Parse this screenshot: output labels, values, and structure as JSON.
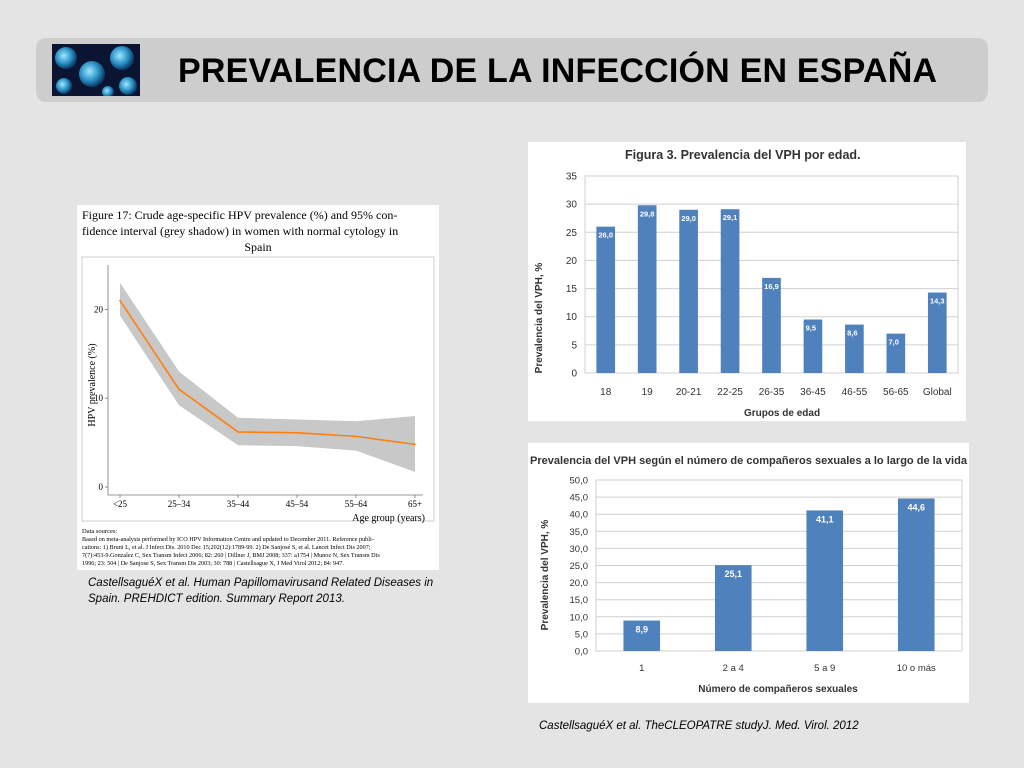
{
  "slide": {
    "title": "PREVALENCIA DE LA INFECCIÓN EN ESPAÑA",
    "caption_left_1": "CastellsaguéX et al. Human Papillomavirusand Related Diseases in",
    "caption_left_2": "Spain. PREHDICT edition. Summary Report 2013.",
    "caption_right": "CastellsaguéX et al. TheCLEOPATRE studyJ. Med. Virol. 2012"
  },
  "colors": {
    "bar": "#4f81bd",
    "line": "#ff7f0e",
    "band": "#c8c8c8",
    "slide_bg": "#e4e4e4",
    "title_bar": "#cdcdcd"
  },
  "chart_data": [
    {
      "type": "line",
      "title_lines": [
        "Figure 17:   Crude age-specific HPV prevalence (%) and 95% con-",
        "fidence interval (grey shadow) in women with normal cytology in",
        "Spain"
      ],
      "xlabel": "Age group (years)",
      "ylabel": "HPV prevalence (%)",
      "categories": [
        "<25",
        "25–34",
        "35–44",
        "45–54",
        "55–64",
        "65+"
      ],
      "values": [
        21.0,
        11.0,
        6.2,
        6.1,
        5.7,
        4.8
      ],
      "ci_upper": [
        23.0,
        13.0,
        7.8,
        7.6,
        7.4,
        8.0
      ],
      "ci_lower": [
        19.3,
        9.2,
        4.7,
        4.6,
        4.1,
        1.7
      ],
      "ylim": [
        0,
        25
      ],
      "yticks": [
        0,
        10,
        20
      ],
      "notes_heading": "Data sources:",
      "notes": [
        "Based on meta-analysis performed by ICO HPV Information Centre and updated to December 2011.  Reference publi-",
        "cations:  1) Bruni L, et al.   J Infect Dis.  2010 Dec 15;202(12):1789-99.  2) De Sanjosé S, et al.   Lancet Infect Dis 2007;",
        "7(7):453-9.Gonzalez C, Sex Transm Infect 2006; 82: 260  |  Dillner J, BMJ 2008; 337: a1754  |  Munoz N, Sex Transm Dis",
        "1996; 23: 504  |  De Sanjose S, Sex Transm Dis 2003; 30: 788  |  Castellsague X, J Med Virol 2012; 84: 947."
      ]
    },
    {
      "type": "bar",
      "title": "Figura 3. Prevalencia del VPH por edad.",
      "xlabel": "Grupos de edad",
      "ylabel": "Prevalencia del VPH, %",
      "categories": [
        "18",
        "19",
        "20-21",
        "22-25",
        "26-35",
        "36-45",
        "46-55",
        "56-65",
        "Global"
      ],
      "values": [
        26.0,
        29.8,
        29.0,
        29.1,
        16.9,
        9.5,
        8.6,
        7.0,
        14.3
      ],
      "labels": [
        "26,0",
        "29,8",
        "29,0",
        "29,1",
        "16,9",
        "9,5",
        "8,6",
        "7,0",
        "14,3"
      ],
      "ylim": [
        0,
        35
      ],
      "yticks": [
        "0",
        "5",
        "10",
        "15",
        "20",
        "25",
        "30",
        "35"
      ],
      "grid": true
    },
    {
      "type": "bar",
      "title": "Prevalencia del VPH según el número de compañeros sexuales a lo largo de la vida",
      "xlabel": "Número de compañeros sexuales",
      "ylabel": "Prevalencia del VPH, %",
      "categories": [
        "1",
        "2 a 4",
        "5 a 9",
        "10 o más"
      ],
      "values": [
        8.9,
        25.1,
        41.1,
        44.6
      ],
      "labels": [
        "8,9",
        "25,1",
        "41,1",
        "44,6"
      ],
      "ylim": [
        0,
        50
      ],
      "yticks": [
        "0,0",
        "5,0",
        "10,0",
        "15,0",
        "20,0",
        "25,0",
        "30,0",
        "35,0",
        "40,0",
        "45,0",
        "50,0"
      ],
      "grid": true
    }
  ]
}
